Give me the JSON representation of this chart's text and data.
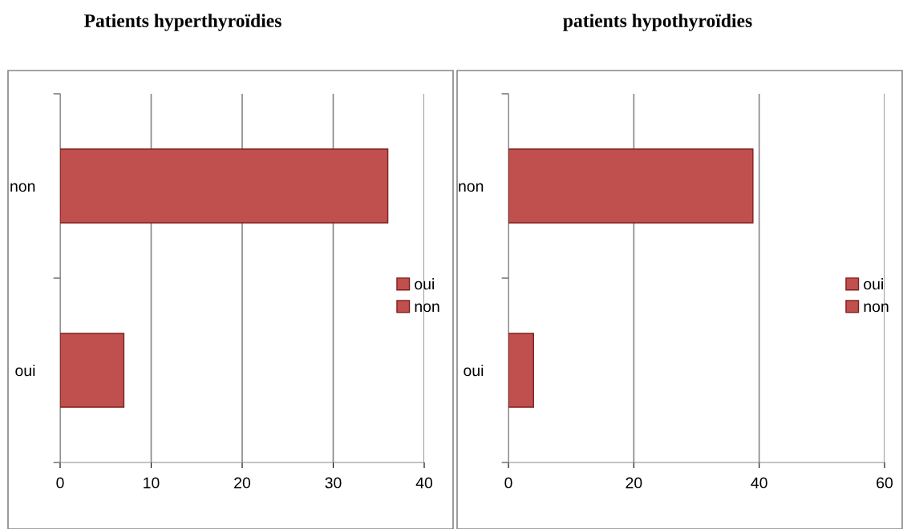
{
  "chart_data": [
    {
      "type": "bar",
      "orientation": "horizontal",
      "title": "Patients hyperthyroïdies",
      "categories": [
        "non",
        "oui"
      ],
      "series": [
        {
          "name": "oui",
          "color": "#c0504d",
          "values": [
            null,
            7
          ]
        },
        {
          "name": "non",
          "color": "#c0504d",
          "values": [
            36,
            null
          ]
        }
      ],
      "xlim": [
        0,
        40
      ],
      "xticks": [
        0,
        10,
        20,
        30,
        40
      ],
      "grid": "x",
      "legend": "right"
    },
    {
      "type": "bar",
      "orientation": "horizontal",
      "title": "patients hypothyroïdies",
      "categories": [
        "non",
        "oui"
      ],
      "series": [
        {
          "name": "oui",
          "color": "#c0504d",
          "values": [
            null,
            4
          ]
        },
        {
          "name": "non",
          "color": "#c0504d",
          "values": [
            39,
            null
          ]
        }
      ],
      "xlim": [
        0,
        60
      ],
      "xticks": [
        0,
        20,
        40,
        60
      ],
      "grid": "x",
      "legend": "right"
    }
  ]
}
